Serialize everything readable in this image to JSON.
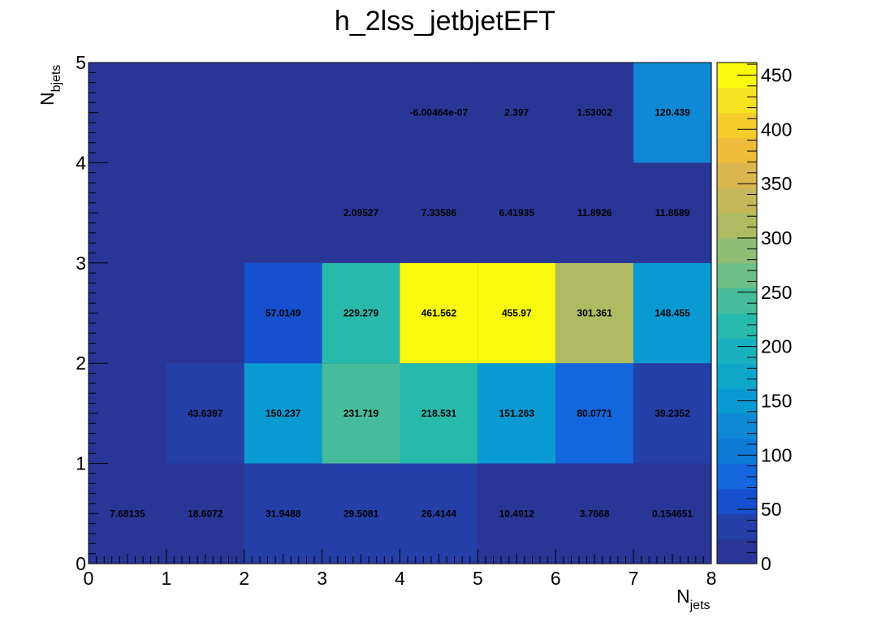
{
  "chart_data": {
    "type": "heatmap",
    "title": "h_2lss_jetbjetEFT",
    "xlabel": {
      "main": "N",
      "sub": "jets"
    },
    "ylabel": {
      "main": "N",
      "sub": "bjets"
    },
    "x_range": [
      0,
      8
    ],
    "y_range": [
      0,
      5
    ],
    "x_ticks": [
      "0",
      "1",
      "2",
      "3",
      "4",
      "5",
      "6",
      "7",
      "8"
    ],
    "y_ticks": [
      "0",
      "1",
      "2",
      "3",
      "4",
      "5"
    ],
    "z_range": [
      0,
      461.562
    ],
    "z_ticks": [
      "0",
      "50",
      "100",
      "150",
      "200",
      "250",
      "300",
      "350",
      "400",
      "450"
    ],
    "z_tick_values": [
      0,
      50,
      100,
      150,
      200,
      250,
      300,
      350,
      400,
      450
    ],
    "colormap": [
      "#2a3696",
      "#253fa8",
      "#1551ce",
      "#1366dc",
      "#0e7ad6",
      "#0f89d6",
      "#0a9ad2",
      "#0fa7c8",
      "#18b1bd",
      "#27b9ac",
      "#47bc9a",
      "#6dbe87",
      "#8fbd74",
      "#aebb63",
      "#c5b85a",
      "#dbb64f",
      "#eebc3a",
      "#f6cc2a",
      "#f5e221",
      "#f9f80d"
    ],
    "rows": [
      {
        "y_bin": 0,
        "values": [
          7.68135,
          18.6072,
          31.9488,
          29.5081,
          26.4144,
          10.4912,
          3.7668,
          0.154651
        ],
        "labels": [
          "7.68135",
          "18.6072",
          "31.9488",
          "29.5081",
          "26.4144",
          "10.4912",
          "3.7668",
          "0.154651"
        ]
      },
      {
        "y_bin": 1,
        "values": [
          null,
          43.6397,
          150.237,
          231.719,
          218.531,
          151.263,
          80.0771,
          39.2352
        ],
        "labels": [
          "",
          "43.6397",
          "150.237",
          "231.719",
          "218.531",
          "151.263",
          "80.0771",
          "39.2352"
        ]
      },
      {
        "y_bin": 2,
        "values": [
          null,
          null,
          57.0149,
          229.279,
          461.562,
          455.97,
          301.361,
          148.455
        ],
        "labels": [
          "",
          "",
          "57.0149",
          "229.279",
          "461.562",
          "455.97",
          "301.361",
          "148.455"
        ]
      },
      {
        "y_bin": 3,
        "values": [
          null,
          null,
          null,
          2.09527,
          7.33586,
          6.41935,
          11.8926,
          11.8689
        ],
        "labels": [
          "",
          "",
          "",
          "2.09527",
          "7.33586",
          "6.41935",
          "11.8926",
          "11.8689"
        ]
      },
      {
        "y_bin": 4,
        "values": [
          null,
          null,
          null,
          null,
          -6.00464e-07,
          2.397,
          1.53002,
          120.439
        ],
        "labels": [
          "",
          "",
          "",
          "",
          "-6.00464e-07",
          "2.397",
          "1.53002",
          "120.439"
        ]
      }
    ]
  }
}
